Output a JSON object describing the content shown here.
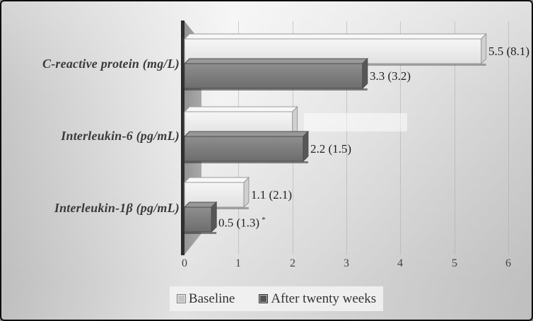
{
  "chart_data": {
    "type": "bar",
    "orientation": "horizontal",
    "style": "3d",
    "title": "",
    "xlabel": "",
    "ylabel": "",
    "xlim": [
      0,
      6
    ],
    "x_ticks": [
      0,
      1,
      2,
      3,
      4,
      5,
      6
    ],
    "grid": "vertical",
    "legend_position": "bottom",
    "categories": [
      "C-reactive protein (mg/L)",
      "Interleukin-6 (pg/mL)",
      "Interleukin-1β (pg/mL)"
    ],
    "series": [
      {
        "name": "Baseline",
        "values": [
          5.5,
          2.0,
          1.1
        ],
        "labels": [
          "5.5 (8.1)",
          "",
          "1.1 (2.1)"
        ],
        "label_suffixes": [
          "",
          "",
          ""
        ],
        "fill": {
          "front_light": "#f6f6f6",
          "front_dark": "#e1e1e1",
          "top": "#f8f8f8",
          "end": "#d0d0d0",
          "stroke": "#9a9a9a",
          "rim": "#6f6f6f"
        },
        "legend_swatch": "#c4c4c4",
        "legend_swatch_border": "#7d7d7d"
      },
      {
        "name": "After twenty weeks",
        "values": [
          3.3,
          2.2,
          0.5
        ],
        "labels": [
          "3.3 (3.2)",
          "2.2 (1.5)",
          "0.5 (1.3)"
        ],
        "label_suffixes": [
          "",
          "",
          "*"
        ],
        "fill": {
          "front_light": "#8e8e8e",
          "front_dark": "#6d6d6d",
          "top": "#989898",
          "end": "#575757",
          "stroke": "#4c4c4c",
          "rim": "#373737"
        },
        "legend_swatch": "#545454",
        "legend_swatch_border": "#2e2e2e"
      }
    ]
  },
  "colors": {
    "axis_line": "#2e2e2e",
    "wall_start": "#949494",
    "wall_end": "#a9a9a9",
    "gridline": "rgba(172,172,172,0.55)",
    "frame_border": "#0d0d0d"
  }
}
